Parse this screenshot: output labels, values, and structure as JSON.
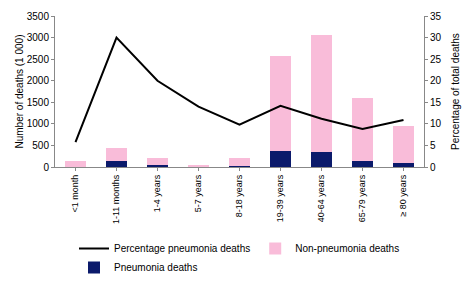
{
  "chart_data": {
    "type": "bar",
    "stacked": true,
    "categories": [
      "<1 month",
      "1-11 months",
      "1-4 years",
      "5-7 years",
      "8-18 years",
      "19-39 years",
      "40-64 years",
      "65-79 years",
      "≥ 80 years"
    ],
    "series": [
      {
        "name": "Pneumonia deaths",
        "type": "bar",
        "color": "#0b1a6b",
        "values": [
          8,
          135,
          42,
          7,
          20,
          365,
          345,
          140,
          105
        ]
      },
      {
        "name": "Non-pneumonia deaths",
        "type": "bar",
        "color": "#f9bcd9",
        "values": [
          142,
          315,
          168,
          43,
          180,
          2215,
          2705,
          1460,
          855
        ]
      },
      {
        "name": "Percentage pneumonia deaths",
        "type": "line",
        "axis": "y2",
        "color": "#000000",
        "values": [
          5.8,
          30,
          20,
          14,
          9.8,
          14.2,
          11.2,
          8.8,
          10.9
        ]
      }
    ],
    "y_label": "Number of deaths (1 000)",
    "y2_label": "Percentage of total deaths",
    "ylim": [
      0,
      3500
    ],
    "yticks": [
      0,
      500,
      1000,
      1500,
      2000,
      2500,
      3000,
      3500
    ],
    "y2lim": [
      0,
      35
    ],
    "y2ticks": [
      0,
      5,
      10,
      15,
      20,
      25,
      30,
      35
    ],
    "legend": "bottom",
    "grid": false
  }
}
